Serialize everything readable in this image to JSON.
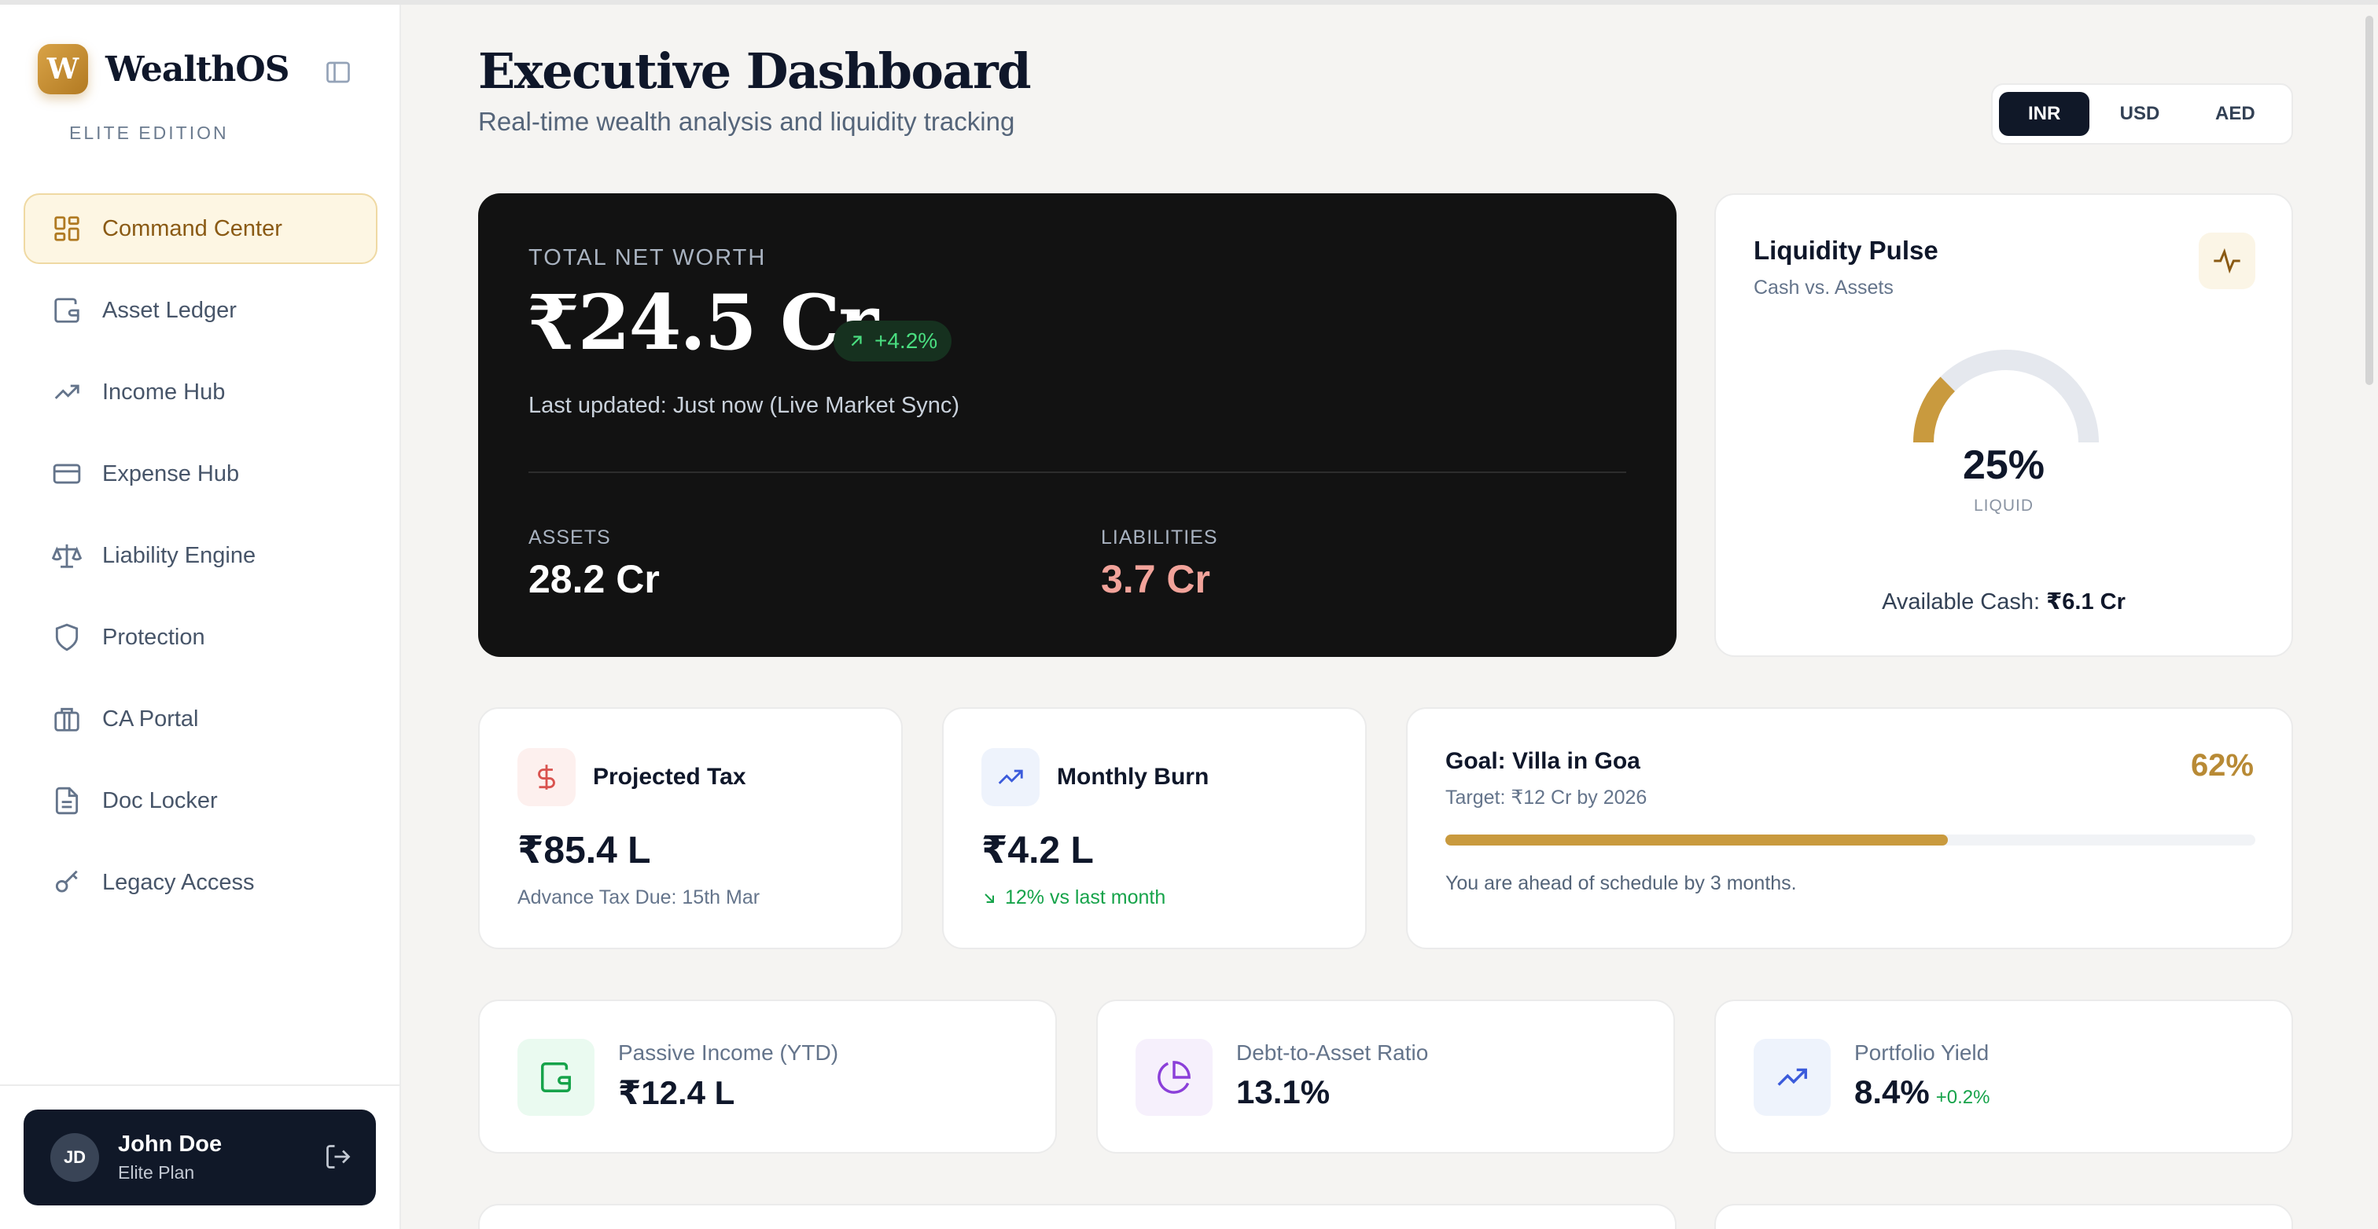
{
  "brand": {
    "logo_letter": "W",
    "name": "WealthOS",
    "edition": "ELITE EDITION"
  },
  "nav": {
    "items": [
      {
        "label": "Command Center",
        "icon": "grid-icon",
        "active": true
      },
      {
        "label": "Asset Ledger",
        "icon": "wallet-icon"
      },
      {
        "label": "Income Hub",
        "icon": "trending-up-icon"
      },
      {
        "label": "Expense Hub",
        "icon": "credit-card-icon"
      },
      {
        "label": "Liability Engine",
        "icon": "scale-icon"
      },
      {
        "label": "Protection",
        "icon": "shield-icon"
      },
      {
        "label": "CA Portal",
        "icon": "briefcase-icon"
      },
      {
        "label": "Doc Locker",
        "icon": "document-icon"
      },
      {
        "label": "Legacy Access",
        "icon": "key-icon"
      }
    ]
  },
  "user": {
    "initials": "JD",
    "name": "John Doe",
    "plan": "Elite Plan"
  },
  "header": {
    "title": "Executive Dashboard",
    "subtitle": "Real-time wealth analysis and liquidity tracking"
  },
  "currency": {
    "options": [
      "INR",
      "USD",
      "AED"
    ],
    "selected": "INR"
  },
  "net_worth": {
    "label": "TOTAL NET WORTH",
    "value": "₹24.5 Cr",
    "change": "+4.2%",
    "updated": "Last updated: Just now (Live Market Sync)",
    "assets_label": "ASSETS",
    "assets_value": "28.2 Cr",
    "liabilities_label": "LIABILITIES",
    "liabilities_value": "3.7 Cr"
  },
  "liquidity": {
    "title": "Liquidity Pulse",
    "subtitle": "Cash vs. Assets",
    "percent": 25,
    "percent_text": "25%",
    "percent_label": "LIQUID",
    "cash_label": "Available Cash:",
    "cash_value": "₹6.1 Cr"
  },
  "projected_tax": {
    "title": "Projected Tax",
    "value": "₹85.4 L",
    "sub": "Advance Tax Due: 15th Mar"
  },
  "monthly_burn": {
    "title": "Monthly Burn",
    "value": "₹4.2 L",
    "sub": "12% vs last month"
  },
  "goal": {
    "title": "Goal: Villa in Goa",
    "target": "Target: ₹12 Cr by 2026",
    "percent": 62,
    "percent_text": "62%",
    "note": "You are ahead of schedule by 3 months."
  },
  "kpis": {
    "passive_income": {
      "label": "Passive Income (YTD)",
      "value": "₹12.4 L"
    },
    "debt_ratio": {
      "label": "Debt-to-Asset Ratio",
      "value": "13.1%"
    },
    "portfolio_yield": {
      "label": "Portfolio Yield",
      "value": "8.4%",
      "delta": "+0.2%"
    }
  },
  "colors": {
    "accent_gold": "#c99a3e",
    "dark": "#101828",
    "positive": "#16a34a",
    "liability": "#f2a39a"
  }
}
